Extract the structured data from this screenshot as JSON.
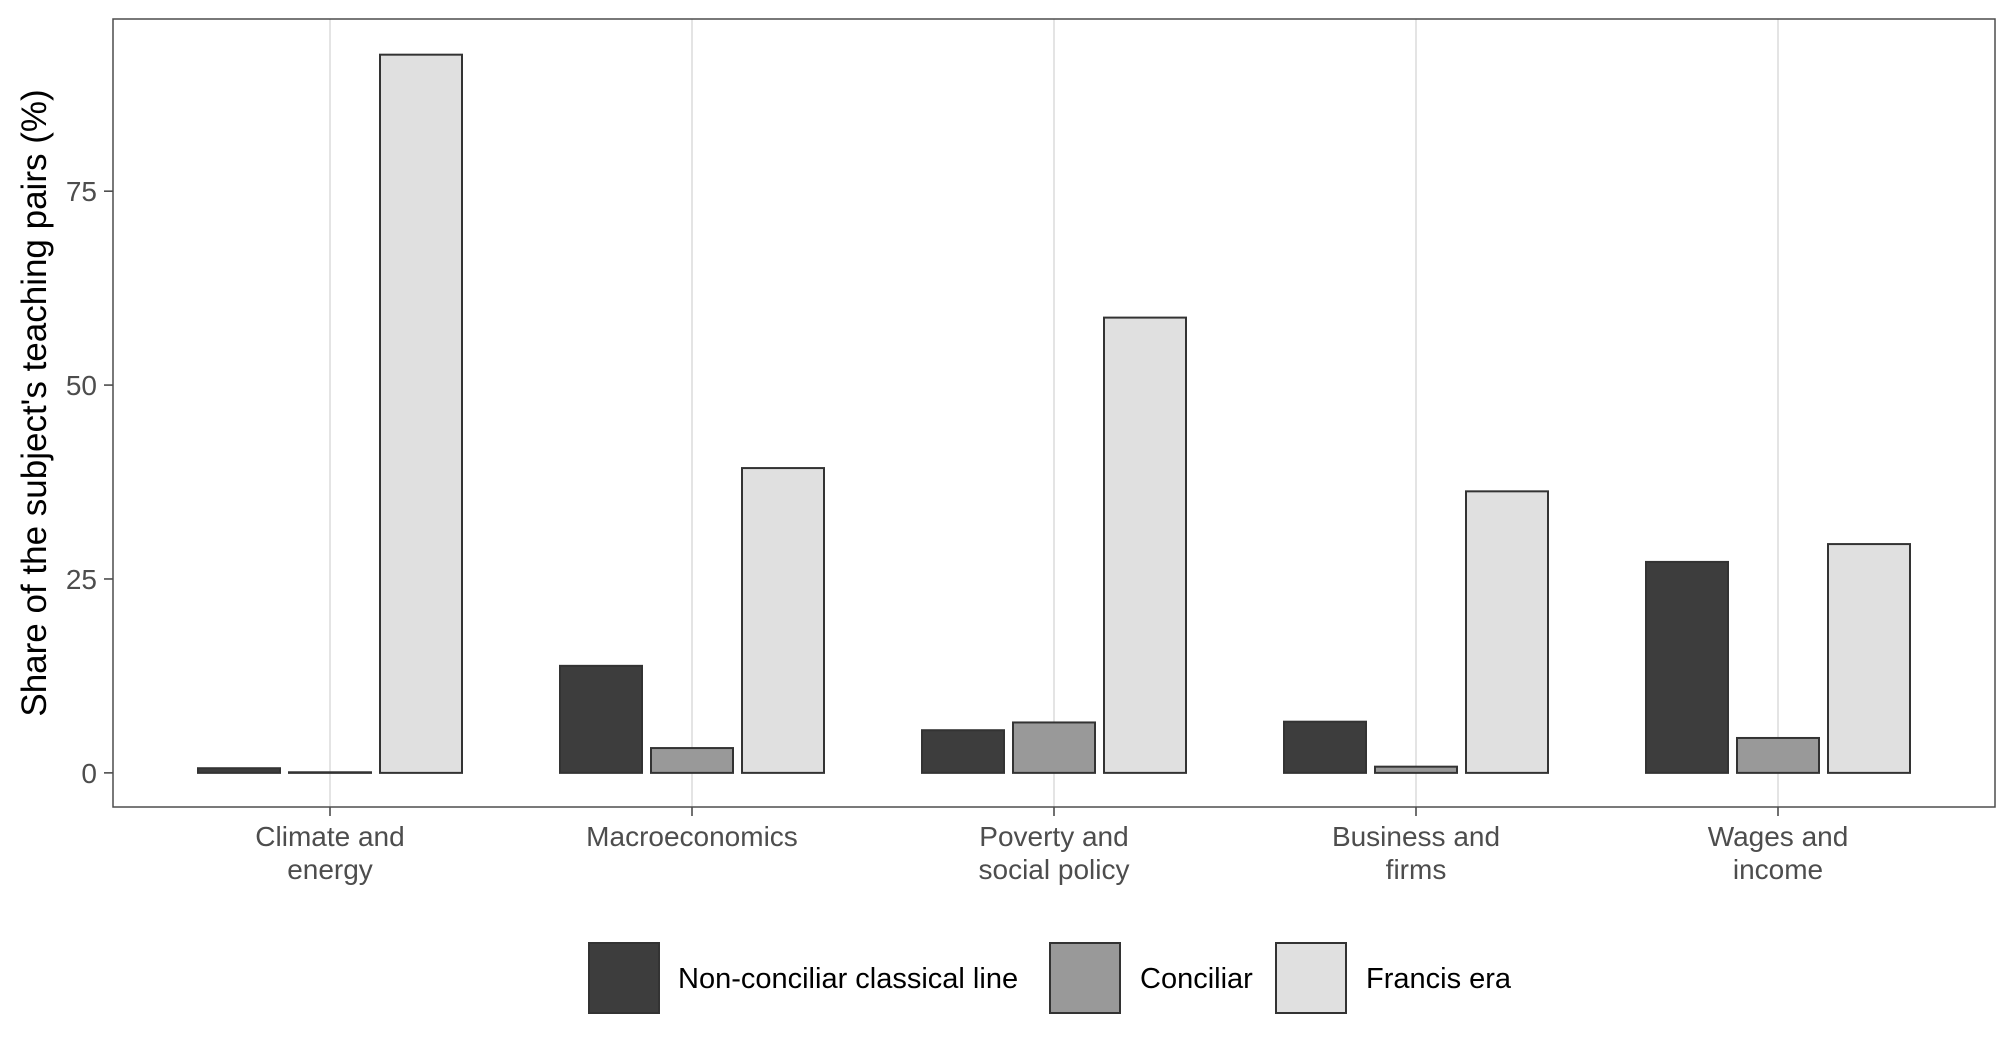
{
  "chart_data": {
    "type": "bar",
    "title": "",
    "xlabel": "",
    "ylabel": "Share of the subject's teaching pairs (%)",
    "categories": [
      [
        "Climate and",
        "energy"
      ],
      [
        "Macroeconomics"
      ],
      [
        "Poverty and",
        "social policy"
      ],
      [
        "Business and",
        "firms"
      ],
      [
        "Wages and",
        "income"
      ]
    ],
    "series": [
      {
        "name": "Non-conciliar classical line",
        "color": "#3d3d3d",
        "values": [
          0.6,
          13.8,
          5.5,
          6.6,
          27.2
        ]
      },
      {
        "name": "Conciliar",
        "color": "#999999",
        "values": [
          0.0,
          3.2,
          6.5,
          0.8,
          4.5
        ]
      },
      {
        "name": "Francis era",
        "color": "#e0e0e0",
        "values": [
          92.6,
          39.3,
          58.7,
          36.3,
          29.5
        ]
      }
    ],
    "yticks": [
      0,
      25,
      50,
      75
    ],
    "ylim": [
      -4.4,
      97.2
    ],
    "grid": "vertical major lines only",
    "legend_position": "bottom",
    "colors": {
      "bar_border": "#333333",
      "panel_border": "#4d4d4d",
      "grid": "#dedede",
      "tick_text": "#4d4d4d"
    }
  }
}
